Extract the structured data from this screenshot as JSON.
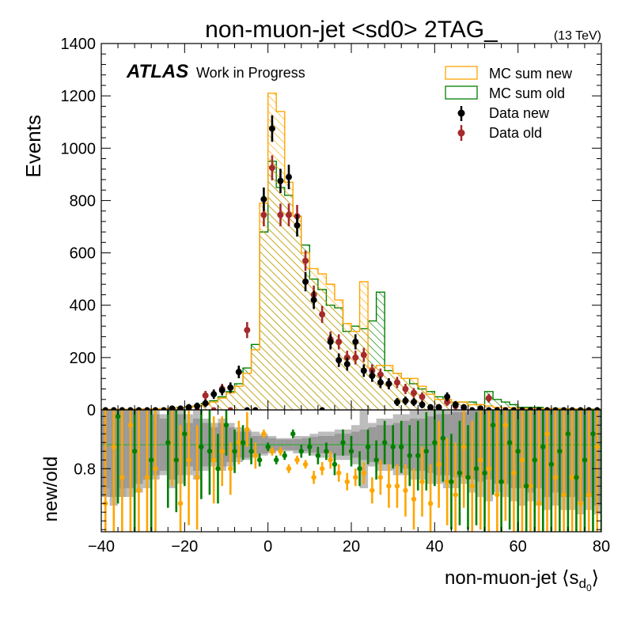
{
  "chart_data": [
    {
      "type": "histogram",
      "title": "non-muon-jet <sd0> 2TAG_",
      "energy_label": "(13 TeV)",
      "experiment": "ATLAS",
      "status": "Work in Progress",
      "ylabel": "Events",
      "xlim": [
        -40,
        80
      ],
      "ylim": [
        0,
        1400
      ],
      "y_ticks": [
        "0",
        "200",
        "400",
        "600",
        "800",
        "1000",
        "1200",
        "1400"
      ],
      "bin_width": 2,
      "x": [
        -40,
        -38,
        -36,
        -34,
        -32,
        -30,
        -28,
        -26,
        -24,
        -22,
        -20,
        -18,
        -16,
        -14,
        -12,
        -10,
        -8,
        -6,
        -4,
        -2,
        0,
        2,
        4,
        6,
        8,
        10,
        12,
        14,
        16,
        18,
        20,
        22,
        24,
        26,
        28,
        30,
        32,
        34,
        36,
        38,
        40,
        42,
        44,
        46,
        48,
        50,
        52,
        54,
        56,
        58,
        60,
        62,
        64,
        66,
        68,
        70,
        72,
        74,
        76,
        78
      ],
      "series": [
        {
          "name": "MC sum new",
          "style": "hatched-step",
          "color": "#ffa500",
          "values": [
            2,
            2,
            2,
            2,
            3,
            3,
            4,
            5,
            6,
            8,
            10,
            14,
            20,
            30,
            45,
            65,
            90,
            140,
            230,
            790,
            1210,
            1140,
            870,
            740,
            600,
            540,
            520,
            480,
            420,
            330,
            300,
            490,
            160,
            170,
            170,
            140,
            120,
            120,
            90,
            60,
            40,
            40,
            30,
            30,
            20,
            20,
            15,
            10,
            8,
            8,
            6,
            6,
            5,
            5,
            4,
            4,
            3,
            3,
            2,
            2
          ]
        },
        {
          "name": "MC sum old",
          "style": "hatched-step",
          "color": "#008000",
          "values": [
            2,
            2,
            2,
            2,
            3,
            3,
            4,
            5,
            7,
            9,
            12,
            15,
            25,
            35,
            50,
            70,
            100,
            160,
            250,
            680,
            950,
            850,
            820,
            740,
            630,
            500,
            460,
            400,
            390,
            300,
            320,
            310,
            340,
            450,
            150,
            140,
            120,
            100,
            80,
            70,
            50,
            40,
            30,
            30,
            30,
            20,
            70,
            40,
            30,
            20,
            10,
            10,
            10,
            5,
            5,
            5,
            4,
            4,
            3,
            3
          ]
        },
        {
          "name": "Data new",
          "style": "points",
          "color": "#000000",
          "values": [
            0,
            0,
            0,
            0,
            0,
            0,
            0,
            0,
            5,
            5,
            10,
            15,
            25,
            60,
            75,
            85,
            145,
            0,
            0,
            805,
            1075,
            875,
            890,
            705,
            490,
            420,
            0,
            260,
            190,
            175,
            260,
            150,
            130,
            105,
            100,
            30,
            35,
            30,
            20,
            10,
            10,
            50,
            20,
            10,
            0,
            5,
            0,
            0,
            0,
            0,
            0,
            0,
            0,
            0,
            0,
            0,
            0,
            0,
            0,
            0
          ]
        },
        {
          "name": "Data old",
          "style": "points",
          "color": "#a52a2a",
          "values": [
            0,
            0,
            0,
            0,
            0,
            0,
            0,
            0,
            0,
            0,
            0,
            0,
            55,
            0,
            80,
            0,
            145,
            305,
            0,
            745,
            925,
            745,
            745,
            740,
            570,
            440,
            365,
            270,
            260,
            200,
            200,
            210,
            150,
            135,
            100,
            105,
            80,
            65,
            50,
            0,
            10,
            30,
            15,
            0,
            0,
            0,
            45,
            0,
            0,
            0,
            0,
            0,
            0,
            0,
            0,
            0,
            0,
            0,
            0,
            0
          ]
        }
      ]
    },
    {
      "type": "ratio",
      "ylabel": "new/old",
      "xlabel": "non-muon-jet ⟨s",
      "xlabel_sub": "d",
      "xlabel_subsub": "0",
      "xlabel_end": "⟩",
      "x_ticks": [
        "−40",
        "−20",
        "0",
        "20",
        "40",
        "60",
        "80"
      ],
      "y_tick": "0.8",
      "reference": 0.855,
      "band_halfwidth": [
        0.12,
        0.12,
        0.12,
        0.1,
        0.09,
        0.08,
        0.07,
        0.06,
        0.08,
        0.07,
        0.05,
        0.06,
        0.05,
        0.04,
        0.05,
        0.04,
        0.03,
        0.03,
        0.02,
        0.02,
        0.015,
        0.012,
        0.012,
        0.013,
        0.015,
        0.018,
        0.02,
        0.02,
        0.025,
        0.025,
        0.03,
        0.035,
        0.04,
        0.045,
        0.045,
        0.05,
        0.055,
        0.06,
        0.06,
        0.065,
        0.07,
        0.07,
        0.075,
        0.075,
        0.08,
        0.085,
        0.08,
        0.09,
        0.09,
        0.1,
        0.1,
        0.11,
        0.1,
        0.12,
        0.11,
        0.12,
        0.12,
        0.13,
        0.12,
        0.14
      ],
      "band_light": [
        0.1,
        0.14,
        0.1,
        0.12,
        0.11,
        0.1,
        0.08,
        0.07,
        0.1,
        0.09,
        0.07,
        0.08,
        0.06,
        0.05,
        0.06,
        0.05,
        0.04,
        0.035,
        0.03,
        0.025,
        0.02,
        0.015,
        0.015,
        0.02,
        0.02,
        0.025,
        0.03,
        0.03,
        0.035,
        0.035,
        0.045,
        0.1,
        0.05,
        0.06,
        0.06,
        0.07,
        0.07,
        0.08,
        0.08,
        0.09,
        0.09,
        0.1,
        0.1,
        0.09,
        0.11,
        0.12,
        0.13,
        0.11,
        0.12,
        0.13,
        0.14,
        0.13,
        0.14,
        0.15,
        0.14,
        0.15,
        0.15,
        0.16,
        0.15,
        0.16
      ],
      "points_new": {
        "color": "#ffa500",
        "x": [
          -39,
          -37,
          -35,
          -33,
          -31,
          -29,
          -27,
          -23,
          -21,
          -19,
          -17,
          -13,
          -11,
          -9,
          -7,
          -5,
          -3,
          -1,
          1,
          3,
          5,
          7,
          9,
          11,
          13,
          15,
          17,
          19,
          21,
          23,
          25,
          27,
          29,
          31,
          33,
          35,
          37,
          39,
          41,
          43,
          45,
          47,
          49,
          51,
          53,
          55,
          57,
          59,
          61,
          63,
          65,
          67,
          69,
          71,
          73,
          75,
          77,
          79
        ],
        "y": [
          0.72,
          0.85,
          0.78,
          0.9,
          0.75,
          0.78,
          0.8,
          0.96,
          0.72,
          0.82,
          0.78,
          0.82,
          0.84,
          0.8,
          0.86,
          0.89,
          0.83,
          0.88,
          0.84,
          0.84,
          0.8,
          0.82,
          0.81,
          0.78,
          0.8,
          0.82,
          0.79,
          0.77,
          0.78,
          0.79,
          0.75,
          0.78,
          0.76,
          0.76,
          0.75,
          0.73,
          0.77,
          0.72,
          0.81,
          0.77,
          0.74,
          0.85,
          0.76,
          0.82,
          0.8,
          0.74,
          0.9,
          0.79,
          0.82,
          0.76,
          0.72,
          0.88,
          0.78,
          0.74,
          0.78,
          0.72,
          0.74,
          0.85
        ],
        "err": [
          0.3,
          0.3,
          0.3,
          0.3,
          0.3,
          0.25,
          0.25,
          0.2,
          0.18,
          0.15,
          0.12,
          0.1,
          0.08,
          0.06,
          0.05,
          0.04,
          0.03,
          0.01,
          0.01,
          0.01,
          0.01,
          0.01,
          0.01,
          0.015,
          0.015,
          0.02,
          0.02,
          0.02,
          0.02,
          0.025,
          0.03,
          0.04,
          0.05,
          0.05,
          0.06,
          0.07,
          0.08,
          0.09,
          0.1,
          0.1,
          0.12,
          0.14,
          0.15,
          0.16,
          0.18,
          0.2,
          0.22,
          0.24,
          0.25,
          0.26,
          0.28,
          0.3,
          0.3,
          0.3,
          0.3,
          0.3,
          0.3,
          0.3
        ]
      },
      "points_old": {
        "color": "#008000",
        "x": [
          -36,
          -32,
          -28,
          -24,
          -22,
          -20,
          -16,
          -14,
          -12,
          -10,
          -8,
          -6,
          -4,
          -2,
          0,
          2,
          4,
          6,
          8,
          10,
          12,
          14,
          16,
          18,
          20,
          22,
          24,
          26,
          28,
          30,
          32,
          34,
          36,
          38,
          40,
          42,
          44,
          46,
          48,
          50,
          52,
          54,
          56,
          58,
          60,
          62,
          64,
          66,
          68,
          70,
          72,
          74,
          76,
          78,
          80
        ],
        "y": [
          0.92,
          0.84,
          0.82,
          0.86,
          0.82,
          0.88,
          0.85,
          0.84,
          0.8,
          0.9,
          0.84,
          0.86,
          0.84,
          0.82,
          0.85,
          0.82,
          0.83,
          0.88,
          0.84,
          0.85,
          0.83,
          0.84,
          0.81,
          0.86,
          0.84,
          0.8,
          0.85,
          0.82,
          0.86,
          0.85,
          0.85,
          0.83,
          0.83,
          0.84,
          0.86,
          0.87,
          0.77,
          0.79,
          0.78,
          0.8,
          0.79,
          0.9,
          0.77,
          0.86,
          0.84,
          0.76,
          0.82,
          0.85,
          0.81,
          0.84,
          0.88,
          0.78,
          0.82,
          0.88,
          0.95
        ],
        "err": [
          0.2,
          0.2,
          0.2,
          0.15,
          0.12,
          0.12,
          0.12,
          0.1,
          0.08,
          0.07,
          0.05,
          0.04,
          0.03,
          0.015,
          0.01,
          0.01,
          0.01,
          0.01,
          0.015,
          0.02,
          0.02,
          0.02,
          0.025,
          0.03,
          0.035,
          0.04,
          0.04,
          0.045,
          0.05,
          0.05,
          0.06,
          0.07,
          0.08,
          0.09,
          0.1,
          0.1,
          0.11,
          0.12,
          0.12,
          0.13,
          0.15,
          0.16,
          0.18,
          0.2,
          0.2,
          0.22,
          0.25,
          0.25,
          0.26,
          0.28,
          0.28,
          0.3,
          0.3,
          0.3,
          0.3
        ]
      }
    }
  ]
}
